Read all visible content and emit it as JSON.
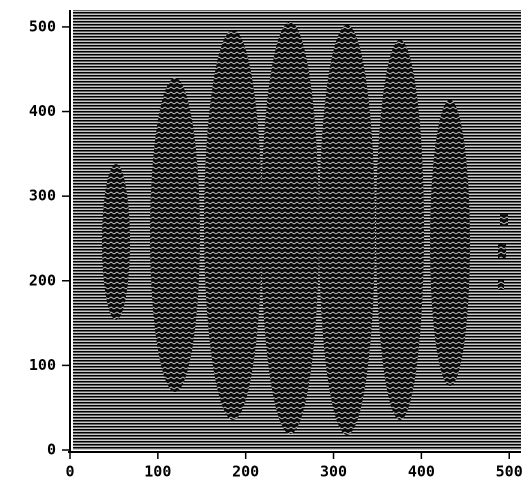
{
  "chart_data": {
    "type": "image",
    "xlim": [
      0,
      510
    ],
    "ylim": [
      0,
      520
    ],
    "xticks": [
      0,
      100,
      200,
      300,
      400,
      500
    ],
    "yticks": [
      0,
      100,
      200,
      300,
      400,
      500
    ]
  }
}
